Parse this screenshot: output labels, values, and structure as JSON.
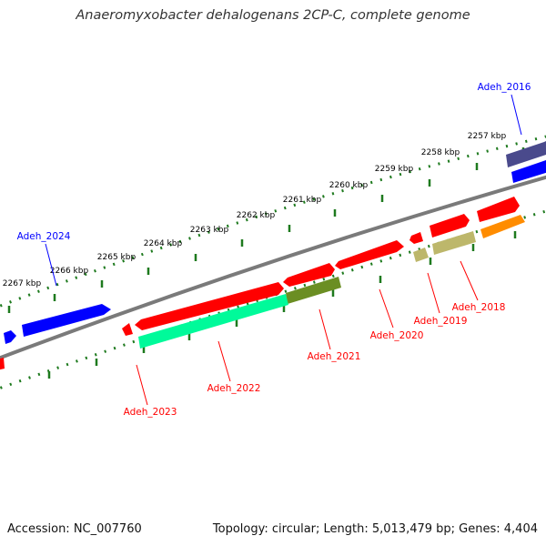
{
  "title": "Anaeromyxobacter dehalogenans 2CP-C, complete genome",
  "accession": "Accession: NC_007760",
  "topology": "Topology: circular; Length: 5,013,479 bp; Genes: 4,404",
  "ticks": [
    {
      "label": "2257 kbp",
      "kbp": 2257
    },
    {
      "label": "2258 kbp",
      "kbp": 2258
    },
    {
      "label": "2259 kbp",
      "kbp": 2259
    },
    {
      "label": "2260 kbp",
      "kbp": 2260
    },
    {
      "label": "2261 kbp",
      "kbp": 2261
    },
    {
      "label": "2262 kbp",
      "kbp": 2262
    },
    {
      "label": "2263 kbp",
      "kbp": 2263
    },
    {
      "label": "2264 kbp",
      "kbp": 2264
    },
    {
      "label": "2265 kbp",
      "kbp": 2265
    },
    {
      "label": "2266 kbp",
      "kbp": 2266
    },
    {
      "label": "2267 kbp",
      "kbp": 2267
    }
  ],
  "genes": [
    {
      "id": "top-strand-far-right",
      "strand": "top",
      "color": "#4a4a8c"
    },
    {
      "id": "top-strand-right-blue",
      "strand": "top",
      "color": "#0000ff"
    },
    {
      "id": "Adeh_2024",
      "strand": "top",
      "color": "#0000ff"
    },
    {
      "id": "small-blue-left",
      "strand": "top",
      "color": "#0000ff"
    },
    {
      "id": "Adeh_2018",
      "strand": "bottom",
      "color": "#ff8c00"
    },
    {
      "id": "Adeh_2019",
      "strand": "bottom",
      "color": "#bdb76b"
    },
    {
      "id": "Adeh_2020",
      "strand": "bottom",
      "color": "#ff0000"
    },
    {
      "id": "Adeh_2021",
      "strand": "bottom",
      "color": "#6b8e23"
    },
    {
      "id": "Adeh_2022",
      "strand": "bottom",
      "color": "#00fa9a"
    },
    {
      "id": "Adeh_2023",
      "strand": "bottom",
      "color": "#ff0000"
    }
  ],
  "labels": [
    {
      "text": "Adeh_2016",
      "color": "#0000ff"
    },
    {
      "text": "Adeh_2024",
      "color": "#0000ff"
    },
    {
      "text": "Adeh_2018",
      "color": "#ff0000"
    },
    {
      "text": "Adeh_2019",
      "color": "#ff0000"
    },
    {
      "text": "Adeh_2020",
      "color": "#ff0000"
    },
    {
      "text": "Adeh_2021",
      "color": "#ff0000"
    },
    {
      "text": "Adeh_2022",
      "color": "#ff0000"
    },
    {
      "text": "Adeh_2023",
      "color": "#ff0000"
    }
  ],
  "colors": {
    "backbone": "#7a7a7a",
    "tick": "#1e7a1e",
    "red_gene": "#ff0000"
  }
}
